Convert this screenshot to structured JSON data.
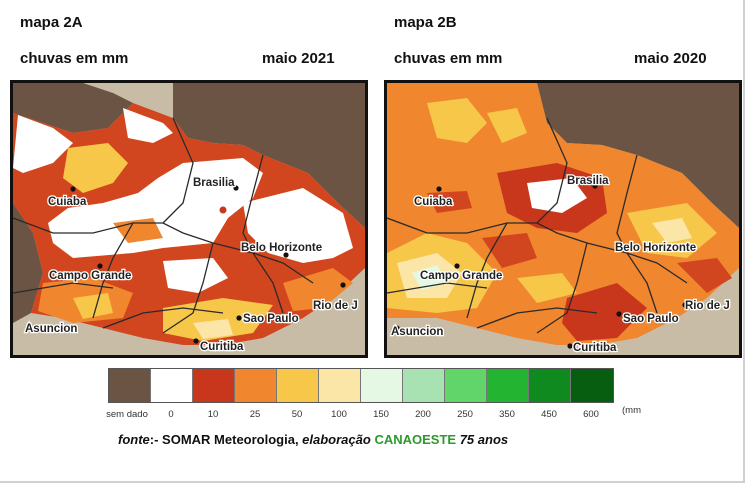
{
  "map_a": {
    "title": "mapa 2A",
    "subtitle": "chuvas em mm",
    "date": "maio 2021",
    "cities": [
      "Cuiaba",
      "Brasilia",
      "Belo Horizonte",
      "Campo Grande",
      "Rio de J",
      "Sao Paulo",
      "Asuncion",
      "Curitiba"
    ]
  },
  "map_b": {
    "title": "mapa 2B",
    "subtitle": "chuvas em mm",
    "date": "maio 2020",
    "cities": [
      "Cuiaba",
      "Brasilia",
      "Belo Horizonte",
      "Campo Grande",
      "Rio de J",
      "Sao Paulo",
      "Asuncion",
      "Curitiba"
    ]
  },
  "legend": {
    "colors": [
      "#6b5444",
      "#ffffff",
      "#c8361c",
      "#f0862e",
      "#f7c74a",
      "#fbe6a8",
      "#e4f8e4",
      "#a9e2b2",
      "#62d56a",
      "#23b531",
      "#0f8a1e",
      "#075e11"
    ],
    "labels": [
      "sem dado",
      "0",
      "10",
      "25",
      "50",
      "100",
      "150",
      "200",
      "250",
      "350",
      "450",
      "600"
    ],
    "unit": "(mm"
  },
  "source": {
    "prefix": "fonte",
    "part1": ":- SOMAR Meteorologia, ",
    "part2": "elaboração",
    "org": "CANAOESTE",
    "suffix": "75 anos"
  }
}
